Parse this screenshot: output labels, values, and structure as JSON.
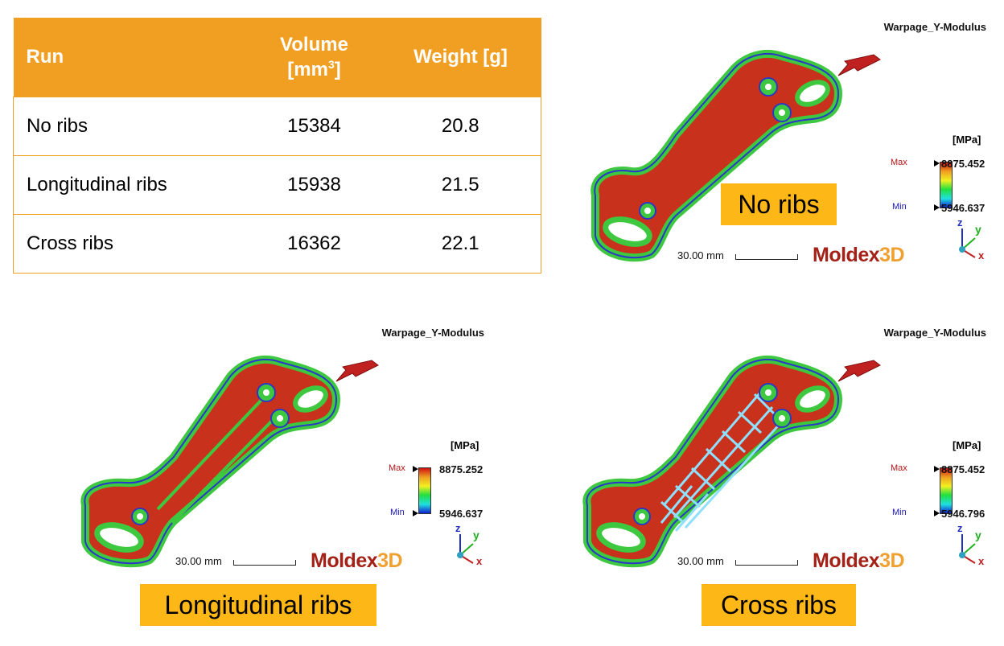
{
  "table": {
    "headers": {
      "run": "Run",
      "volume_line1": "Volume",
      "volume_line2_prefix": "[mm",
      "volume_sup": "3",
      "volume_line2_suffix": "]",
      "weight": "Weight [g]"
    },
    "rows": [
      {
        "run": "No ribs",
        "volume": "15384",
        "weight": "20.8"
      },
      {
        "run": "Longitudinal ribs",
        "volume": "15938",
        "weight": "21.5"
      },
      {
        "run": "Cross ribs",
        "volume": "16362",
        "weight": "22.1"
      }
    ]
  },
  "panels": [
    {
      "title": "Warpage_Y-Modulus",
      "unit": "[MPa]",
      "max_tag": "Max",
      "max_value": "8875.452",
      "min_tag": "Min",
      "min_value": "5946.637",
      "scale": "30.00 mm",
      "logo_main": "Moldex",
      "logo_suffix": "3D",
      "caption": "No ribs",
      "axis_z": "z",
      "axis_y": "y",
      "axis_x": "x"
    },
    {
      "title": "Warpage_Y-Modulus",
      "unit": "[MPa]",
      "max_tag": "Max",
      "max_value": "8875.252",
      "min_tag": "Min",
      "min_value": "5946.637",
      "scale": "30.00 mm",
      "logo_main": "Moldex",
      "logo_suffix": "3D",
      "caption": "Longitudinal ribs",
      "axis_z": "z",
      "axis_y": "y",
      "axis_x": "x"
    },
    {
      "title": "Warpage_Y-Modulus",
      "unit": "[MPa]",
      "max_tag": "Max",
      "max_value": "8875.452",
      "min_tag": "Min",
      "min_value": "5946.796",
      "scale": "30.00 mm",
      "logo_main": "Moldex",
      "logo_suffix": "3D",
      "caption": "Cross ribs",
      "axis_z": "z",
      "axis_y": "y",
      "axis_x": "x"
    }
  ],
  "colors": {
    "table_header": "#F19F22",
    "caption_bg": "#FDB717",
    "part_hot": "#c8321c",
    "part_edge": "#3ec840",
    "logo_red": "#a52016",
    "logo_orange": "#f0a030"
  }
}
